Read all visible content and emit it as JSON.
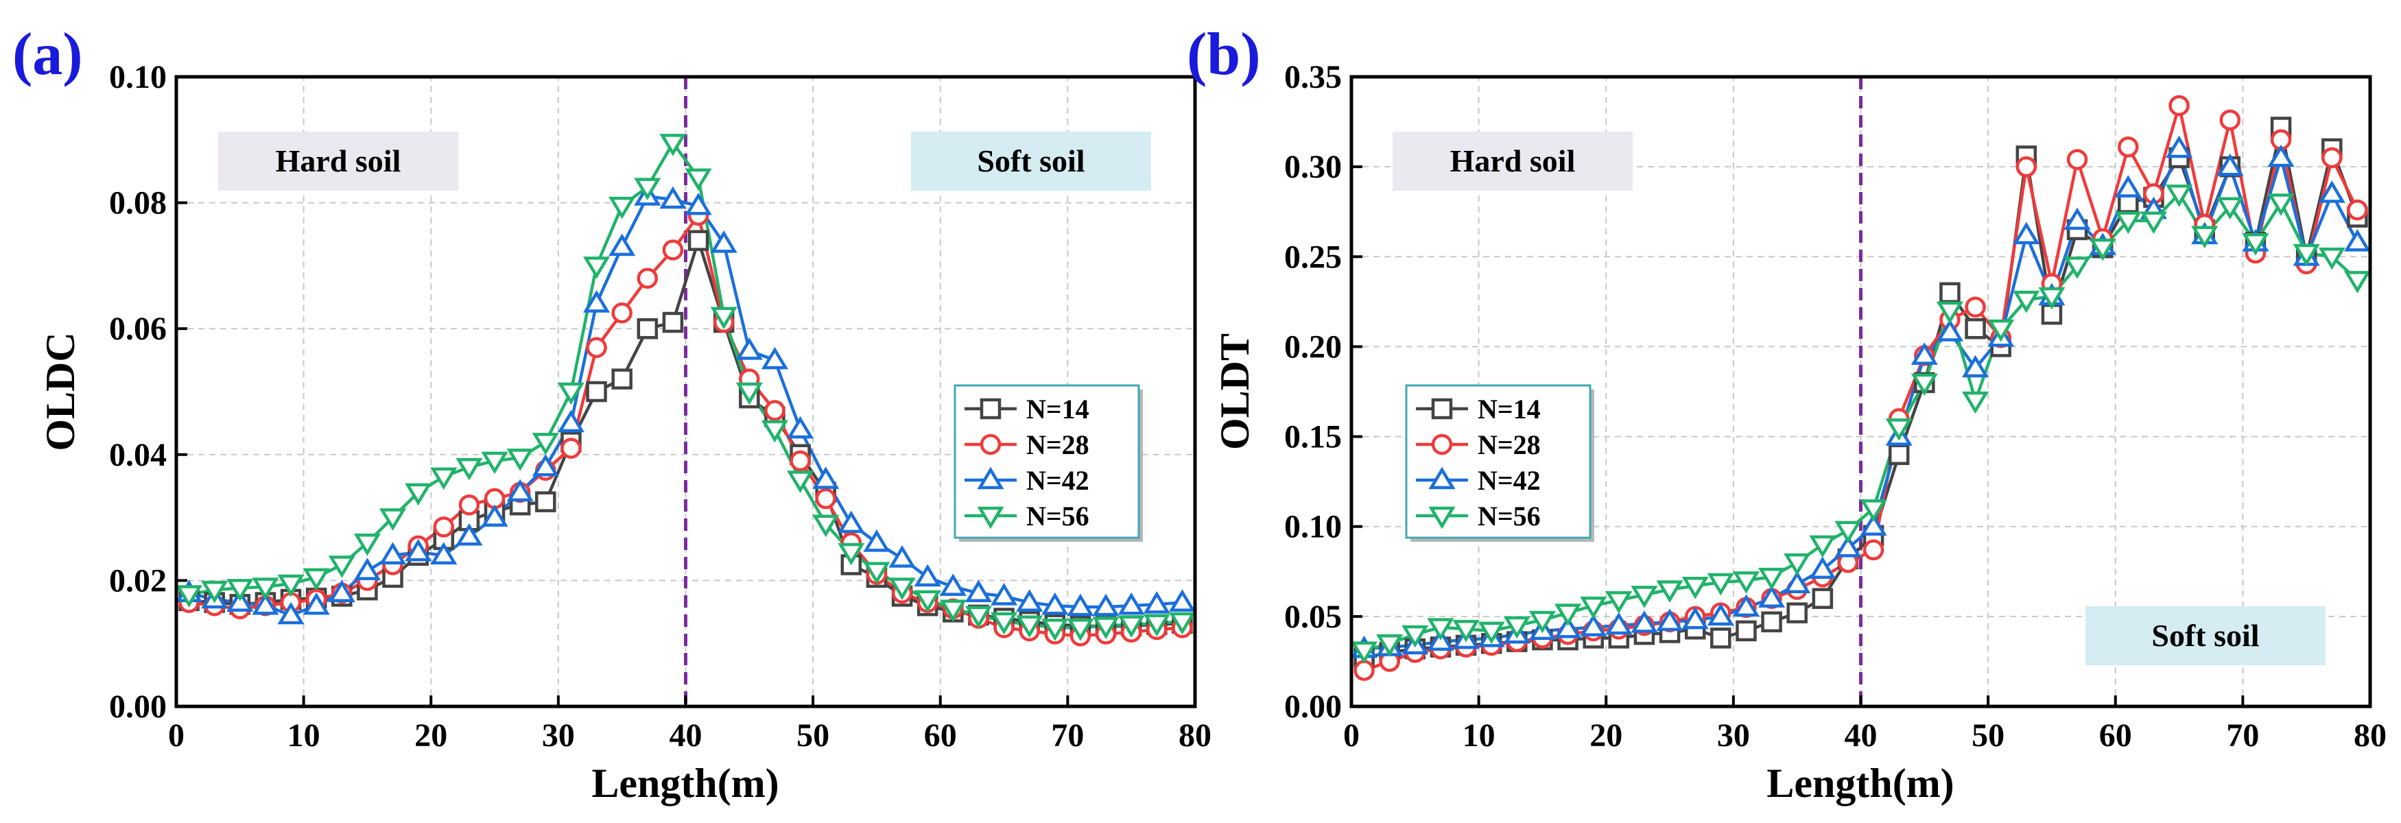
{
  "colors": {
    "panel_label": "#1a1adc",
    "divider": "#7b2b9e",
    "grid": "#c8c8c8",
    "hard_soil_box": "#ece8ef",
    "soft_soil_box": "#d4ecf2",
    "legend_border": "#3fa7b5"
  },
  "legend": [
    {
      "label": "N=14",
      "color": "#444444",
      "marker": "square"
    },
    {
      "label": "N=28",
      "color": "#f03a3a",
      "marker": "circle"
    },
    {
      "label": "N=42",
      "color": "#1a6fdc",
      "marker": "triangle-up"
    },
    {
      "label": "N=56",
      "color": "#20b36a",
      "marker": "triangle-down"
    }
  ],
  "chart_data": [
    {
      "type": "line",
      "panel_label": "(a)",
      "title": "",
      "xlabel": "Length(m)",
      "ylabel": "OLDC",
      "xlim": [
        0,
        80
      ],
      "ylim": [
        0,
        0.1
      ],
      "xticks": [
        0,
        10,
        20,
        30,
        40,
        50,
        60,
        70,
        80
      ],
      "xtick_labels": [
        "0",
        "10",
        "20",
        "30",
        "40",
        "50",
        "60",
        "70",
        "80"
      ],
      "yticks": [
        0,
        0.02,
        0.04,
        0.06,
        0.08,
        0.1
      ],
      "ytick_labels": [
        "0.00",
        "0.02",
        "0.04",
        "0.06",
        "0.08",
        "0.10"
      ],
      "grid": true,
      "divider_x": 40,
      "regions": [
        {
          "label": "Hard soil",
          "position": "top-left"
        },
        {
          "label": "Soft soil",
          "position": "top-right"
        }
      ],
      "legend_position": "center-right",
      "x": [
        1,
        3,
        5,
        7,
        9,
        11,
        13,
        15,
        17,
        19,
        21,
        23,
        25,
        27,
        29,
        31,
        33,
        35,
        37,
        39,
        41,
        43,
        45,
        47,
        49,
        51,
        53,
        55,
        57,
        59,
        61,
        63,
        65,
        67,
        69,
        71,
        73,
        75,
        77,
        79
      ],
      "series": [
        {
          "name": "N=14",
          "values": [
            0.0168,
            0.0165,
            0.0162,
            0.0165,
            0.017,
            0.0172,
            0.0175,
            0.0185,
            0.0205,
            0.024,
            0.0265,
            0.0295,
            0.031,
            0.032,
            0.0325,
            0.042,
            0.05,
            0.052,
            0.06,
            0.061,
            0.074,
            0.061,
            0.049,
            0.046,
            0.04,
            0.034,
            0.0225,
            0.0205,
            0.0175,
            0.016,
            0.015,
            0.0145,
            0.014,
            0.0135,
            0.013,
            0.0128,
            0.0127,
            0.0128,
            0.013,
            0.0132
          ]
        },
        {
          "name": "N=28",
          "values": [
            0.0165,
            0.016,
            0.0155,
            0.016,
            0.0165,
            0.017,
            0.018,
            0.02,
            0.0225,
            0.0255,
            0.0285,
            0.032,
            0.033,
            0.034,
            0.0375,
            0.041,
            0.057,
            0.0625,
            0.068,
            0.0725,
            0.078,
            0.061,
            0.052,
            0.047,
            0.039,
            0.033,
            0.026,
            0.021,
            0.018,
            0.0165,
            0.0155,
            0.014,
            0.0125,
            0.012,
            0.0115,
            0.0112,
            0.0115,
            0.0118,
            0.0122,
            0.0125
          ]
        },
        {
          "name": "N=42",
          "values": [
            0.018,
            0.017,
            0.0165,
            0.016,
            0.0145,
            0.016,
            0.018,
            0.0215,
            0.024,
            0.0245,
            0.024,
            0.027,
            0.03,
            0.034,
            0.038,
            0.045,
            0.064,
            0.073,
            0.081,
            0.0805,
            0.0795,
            0.0735,
            0.0565,
            0.055,
            0.044,
            0.036,
            0.029,
            0.026,
            0.0235,
            0.0205,
            0.019,
            0.018,
            0.0175,
            0.0165,
            0.016,
            0.0158,
            0.0158,
            0.016,
            0.0162,
            0.0165
          ]
        },
        {
          "name": "N=56",
          "values": [
            0.0178,
            0.0185,
            0.0188,
            0.019,
            0.0195,
            0.0205,
            0.0225,
            0.026,
            0.03,
            0.034,
            0.0365,
            0.038,
            0.039,
            0.0395,
            0.042,
            0.05,
            0.07,
            0.0795,
            0.0825,
            0.0895,
            0.084,
            0.062,
            0.05,
            0.044,
            0.036,
            0.029,
            0.0245,
            0.0215,
            0.019,
            0.017,
            0.0155,
            0.0145,
            0.0135,
            0.013,
            0.0125,
            0.0125,
            0.0128,
            0.013,
            0.0132,
            0.0135
          ]
        }
      ]
    },
    {
      "type": "line",
      "panel_label": "(b)",
      "title": "",
      "xlabel": "Length(m)",
      "ylabel": "OLDT",
      "xlim": [
        0,
        80
      ],
      "ylim": [
        0,
        0.35
      ],
      "xticks": [
        0,
        10,
        20,
        30,
        40,
        50,
        60,
        70,
        80
      ],
      "xtick_labels": [
        "0",
        "10",
        "20",
        "30",
        "40",
        "50",
        "60",
        "70",
        "80"
      ],
      "yticks": [
        0,
        0.05,
        0.1,
        0.15,
        0.2,
        0.25,
        0.3,
        0.35
      ],
      "ytick_labels": [
        "0.00",
        "0.05",
        "0.10",
        "0.15",
        "0.20",
        "0.25",
        "0.30",
        "0.35"
      ],
      "grid": true,
      "divider_x": 40,
      "regions": [
        {
          "label": "Hard soil",
          "position": "top-left"
        },
        {
          "label": "Soft soil",
          "position": "bottom-right"
        }
      ],
      "legend_position": "center-left",
      "x": [
        1,
        3,
        5,
        7,
        9,
        11,
        13,
        15,
        17,
        19,
        21,
        23,
        25,
        27,
        29,
        31,
        33,
        35,
        37,
        39,
        41,
        43,
        45,
        47,
        49,
        51,
        53,
        55,
        57,
        59,
        61,
        63,
        65,
        67,
        69,
        71,
        73,
        75,
        77,
        79
      ],
      "series": [
        {
          "name": "N=14",
          "values": [
            0.027,
            0.03,
            0.032,
            0.033,
            0.034,
            0.035,
            0.036,
            0.037,
            0.037,
            0.038,
            0.038,
            0.04,
            0.041,
            0.043,
            0.038,
            0.042,
            0.047,
            0.052,
            0.06,
            0.082,
            0.095,
            0.14,
            0.18,
            0.23,
            0.21,
            0.2,
            0.306,
            0.218,
            0.265,
            0.255,
            0.28,
            0.283,
            0.305,
            0.265,
            0.3,
            0.258,
            0.322,
            0.25,
            0.31,
            0.272
          ]
        },
        {
          "name": "N=28",
          "values": [
            0.02,
            0.025,
            0.03,
            0.032,
            0.033,
            0.034,
            0.036,
            0.038,
            0.04,
            0.042,
            0.043,
            0.045,
            0.047,
            0.05,
            0.052,
            0.055,
            0.06,
            0.065,
            0.072,
            0.08,
            0.087,
            0.16,
            0.195,
            0.215,
            0.222,
            0.205,
            0.3,
            0.235,
            0.304,
            0.26,
            0.311,
            0.285,
            0.334,
            0.268,
            0.326,
            0.252,
            0.315,
            0.246,
            0.305,
            0.276
          ]
        },
        {
          "name": "N=42",
          "values": [
            0.032,
            0.033,
            0.034,
            0.036,
            0.037,
            0.038,
            0.04,
            0.042,
            0.043,
            0.044,
            0.045,
            0.046,
            0.047,
            0.048,
            0.05,
            0.055,
            0.06,
            0.068,
            0.076,
            0.088,
            0.1,
            0.15,
            0.195,
            0.208,
            0.188,
            0.205,
            0.262,
            0.228,
            0.27,
            0.256,
            0.288,
            0.276,
            0.31,
            0.262,
            0.3,
            0.258,
            0.305,
            0.25,
            0.285,
            0.258
          ]
        },
        {
          "name": "N=56",
          "values": [
            0.031,
            0.035,
            0.04,
            0.044,
            0.043,
            0.042,
            0.045,
            0.048,
            0.052,
            0.056,
            0.059,
            0.062,
            0.065,
            0.067,
            0.069,
            0.07,
            0.072,
            0.08,
            0.09,
            0.098,
            0.11,
            0.155,
            0.18,
            0.22,
            0.17,
            0.21,
            0.226,
            0.228,
            0.245,
            0.255,
            0.27,
            0.27,
            0.285,
            0.262,
            0.278,
            0.258,
            0.28,
            0.252,
            0.25,
            0.237
          ]
        }
      ]
    }
  ]
}
